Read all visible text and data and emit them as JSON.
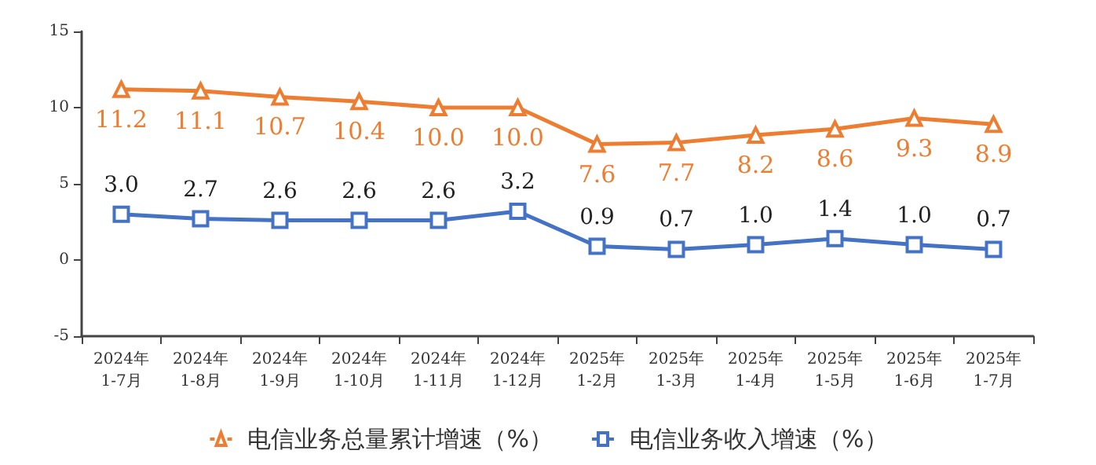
{
  "chart_data": {
    "type": "line",
    "categories": [
      "2024年\n1-7月",
      "2024年\n1-8月",
      "2024年\n1-9月",
      "2024年\n1-10月",
      "2024年\n1-11月",
      "2024年\n1-12月",
      "2025年\n1-2月",
      "2025年\n1-3月",
      "2025年\n1-4月",
      "2025年\n1-5月",
      "2025年\n1-6月",
      "2025年\n1-7月"
    ],
    "series": [
      {
        "name": "电信业务总量累计增速（%）",
        "color": "#ed7d31",
        "marker": "triangle",
        "values": [
          11.2,
          11.1,
          10.7,
          10.4,
          10,
          10,
          7.6,
          7.7,
          8.2,
          8.6,
          9.3,
          8.9
        ],
        "value_labels": [
          "11.2",
          "11.1",
          "10.7",
          "10.4",
          "10.0",
          "10.0",
          "7.6",
          "7.7",
          "8.2",
          "8.6",
          "9.3",
          "8.9"
        ]
      },
      {
        "name": "电信业务收入增速（%）",
        "color": "#4472c4",
        "marker": "square",
        "values": [
          3,
          2.7,
          2.6,
          2.6,
          2.6,
          3.2,
          0.9,
          0.7,
          1,
          1.4,
          1,
          0.7
        ],
        "value_labels": [
          "3.0",
          "2.7",
          "2.6",
          "2.6",
          "2.6",
          "3.2",
          "0.9",
          "0.7",
          "1.0",
          "1.4",
          "1.0",
          "0.7"
        ]
      }
    ],
    "ylim": [
      -5,
      15
    ],
    "yticks": [
      -5,
      0,
      5,
      10,
      15
    ],
    "legend": "bottom",
    "line_style": "solid"
  }
}
